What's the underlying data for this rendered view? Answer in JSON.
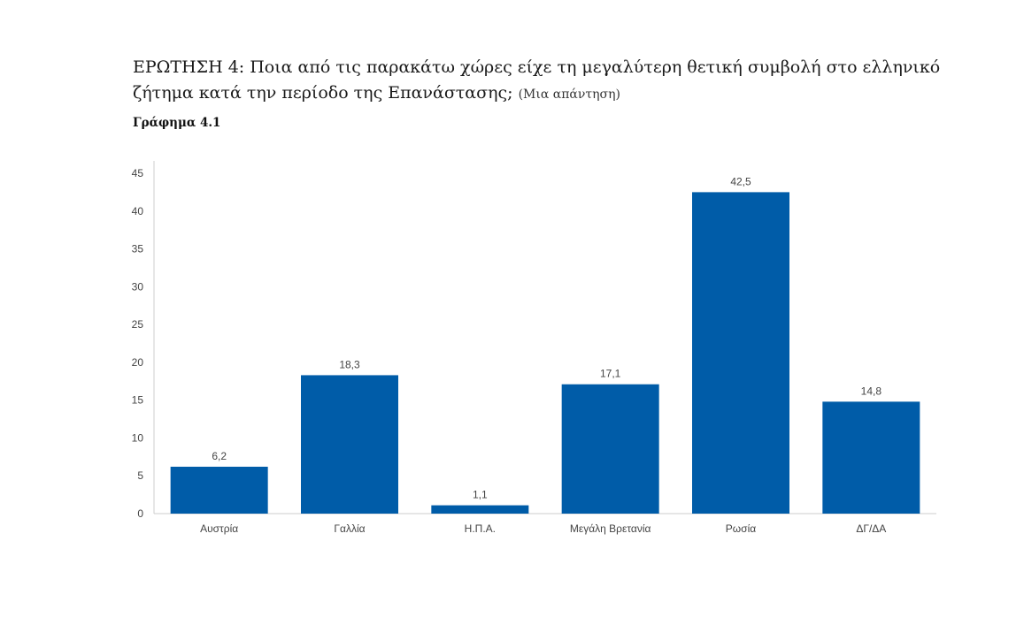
{
  "question": {
    "text": "ΕΡΩΤΗΣΗ 4: Ποια από τις παρακάτω χώρες είχε τη μεγαλύτερη θετική συμβολή στο ελληνικό ζήτημα κατά την περίοδο της Επανάστασης;",
    "note": "(Μια απάντηση)"
  },
  "chart_caption": "Γράφημα 4.1",
  "colors": {
    "bar": "#005ca8",
    "axis": "#cccccc"
  },
  "chart_data": {
    "type": "bar",
    "categories": [
      "Αυστρία",
      "Γαλλία",
      "Η.Π.Α.",
      "Μεγάλη Βρετανία",
      "Ρωσία",
      "ΔΓ/ΔΑ"
    ],
    "values": [
      6.2,
      18.3,
      1.1,
      17.1,
      42.5,
      14.8
    ],
    "value_labels": [
      "6,2",
      "18,3",
      "1,1",
      "17,1",
      "42,5",
      "14,8"
    ],
    "yticks": [
      0,
      5,
      10,
      15,
      20,
      25,
      30,
      35,
      40,
      45
    ],
    "ylim": [
      0,
      45
    ],
    "grid": false,
    "legend": "none"
  }
}
